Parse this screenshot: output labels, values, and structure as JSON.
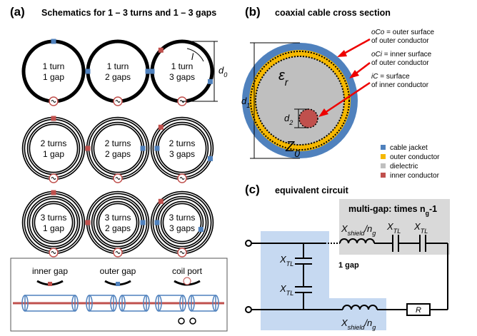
{
  "panel_a": {
    "label": "(a)",
    "title": "Schematics for 1 – 3 turns and 1 – 3 gaps",
    "cells": [
      {
        "line1": "1 turn",
        "line2": "1 gap"
      },
      {
        "line1": "1 turn",
        "line2": "2 gaps"
      },
      {
        "line1": "1 turn",
        "line2": "3 gaps"
      },
      {
        "line1": "2 turns",
        "line2": "1 gap"
      },
      {
        "line1": "2 turns",
        "line2": "2 gaps"
      },
      {
        "line1": "2 turns",
        "line2": "3 gaps"
      },
      {
        "line1": "3 turns",
        "line2": "1 gap"
      },
      {
        "line1": "3 turns",
        "line2": "2 gaps"
      },
      {
        "line1": "3 turns",
        "line2": "3 gaps"
      }
    ],
    "length_symbol": "l",
    "diameter_symbol": [
      "d",
      "0"
    ],
    "legend": [
      "inner gap",
      "outer gap",
      "coil port"
    ]
  },
  "panel_b": {
    "label": "(b)",
    "title": "coaxial cable cross section",
    "annotations": [
      {
        "term": "oCo",
        "line1": " = outer surface",
        "line2": "of outer conductor"
      },
      {
        "term": "oCi",
        "line1": " = inner surface",
        "line2": "of outer conductor"
      },
      {
        "term": "iC",
        "line1": " = surface",
        "line2": "of inner conductor"
      }
    ],
    "permittivity": [
      "ε",
      "r"
    ],
    "impedance": [
      "Z",
      "0"
    ],
    "outer_diameter": [
      "d",
      "1"
    ],
    "inner_diameter": [
      "d",
      "2"
    ],
    "legend": [
      "cable jacket",
      "outer conductor",
      "dielectric",
      "inner conductor"
    ]
  },
  "panel_c": {
    "label": "(c)",
    "title": "equivalent circuit",
    "multi_gap": [
      "multi-gap: times n",
      "g",
      "-1"
    ],
    "reactance_shield": [
      "X",
      "shield",
      "/n",
      "g"
    ],
    "reactance_tl": [
      "X",
      "TL"
    ],
    "one_gap": "1 gap",
    "resistor": "R"
  }
}
